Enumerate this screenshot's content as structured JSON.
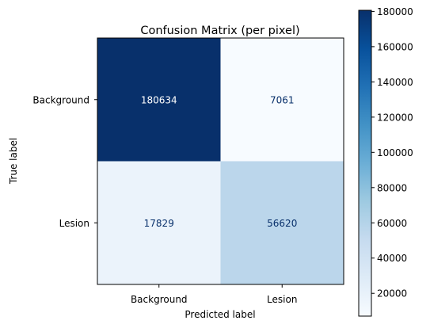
{
  "chart_data": {
    "type": "heatmap",
    "title": "Confusion Matrix (per pixel)",
    "xlabel": "Predicted label",
    "ylabel": "True label",
    "x_categories": [
      "Background",
      "Lesion"
    ],
    "y_categories": [
      "Background",
      "Lesion"
    ],
    "values": [
      [
        180634,
        7061
      ],
      [
        17829,
        56620
      ]
    ],
    "colormap": "Blues",
    "colorbar": {
      "range": [
        7061,
        180634
      ],
      "ticks": [
        20000,
        40000,
        60000,
        80000,
        100000,
        120000,
        140000,
        160000,
        180000
      ]
    },
    "text_colors": {
      "dark_cell": "#ffffff",
      "light_cell": "#08306b"
    },
    "grid": false
  }
}
